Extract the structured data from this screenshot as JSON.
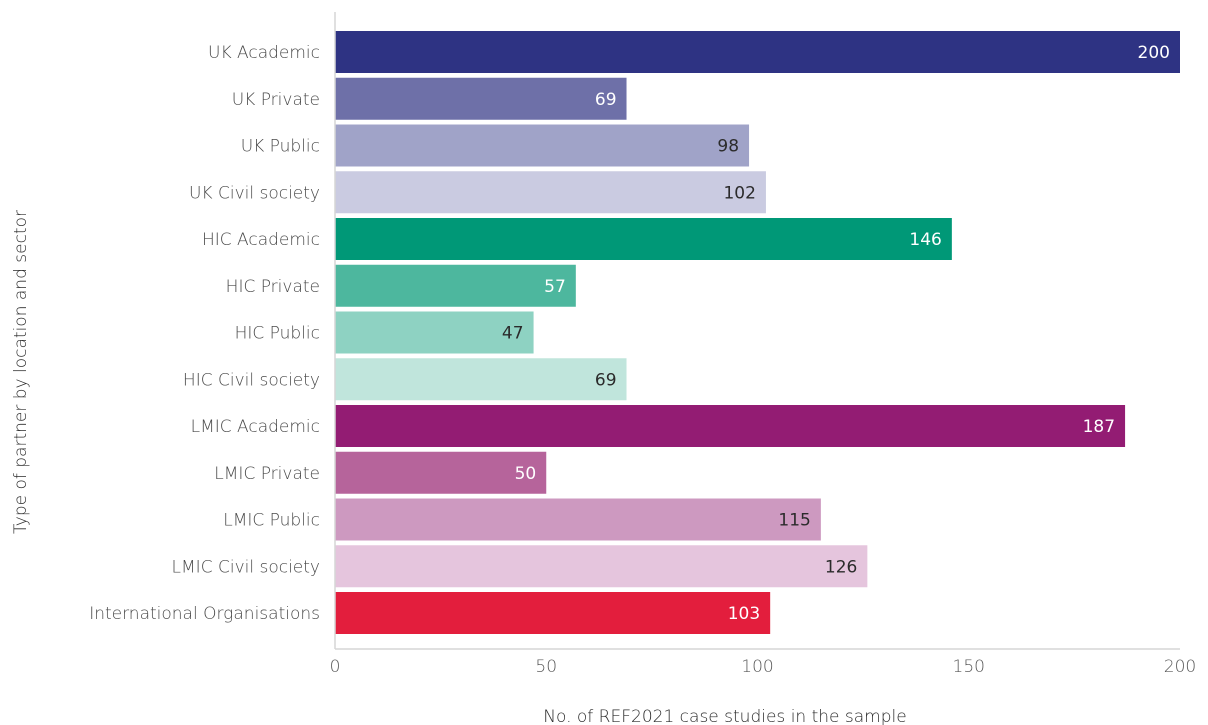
{
  "chart_data": {
    "type": "bar",
    "orientation": "horizontal",
    "title": "",
    "xlabel": "No. of REF2021 case studies in the sample",
    "ylabel": "Type of partner by location and sector",
    "xlim": [
      0,
      200
    ],
    "xticks": [
      "0",
      "50",
      "100",
      "150",
      "200"
    ],
    "grid": false,
    "categories": [
      "UK Academic",
      "UK Private",
      "UK Public",
      "UK Civil society",
      "HIC Academic",
      "HIC Private",
      "HIC Public",
      "HIC Civil society",
      "LMIC Academic",
      "LMIC Private",
      "LMIC Public",
      "LMIC Civil society",
      "International Organisations"
    ],
    "values": [
      200,
      69,
      98,
      102,
      146,
      57,
      47,
      69,
      187,
      50,
      115,
      126,
      103
    ],
    "colors": [
      "#2e3383",
      "#6e70a8",
      "#a0a3c8",
      "#cacbe1",
      "#009877",
      "#4db79e",
      "#8ed2c2",
      "#c0e5dc",
      "#931c73",
      "#b6649b",
      "#cd99c0",
      "#e5c5dd",
      "#e31e3d"
    ],
    "label_colors": [
      "#ffffff",
      "#ffffff",
      "#2b2b2b",
      "#2b2b2b",
      "#ffffff",
      "#ffffff",
      "#2b2b2b",
      "#2b2b2b",
      "#ffffff",
      "#ffffff",
      "#2b2b2b",
      "#2b2b2b",
      "#ffffff"
    ]
  }
}
